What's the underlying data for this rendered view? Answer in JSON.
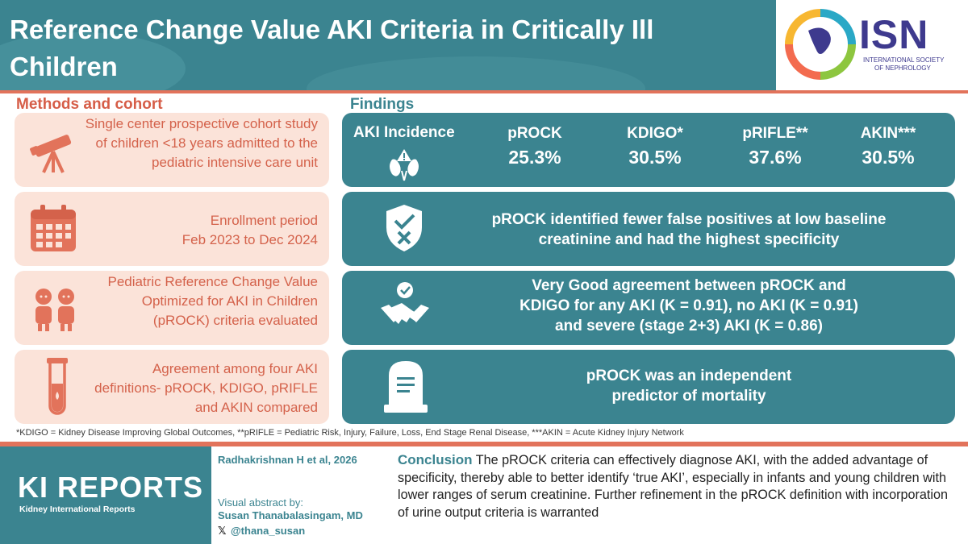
{
  "header": {
    "title": "Reference Change Value AKI Criteria in Critically Ill Children",
    "logo": {
      "name": "ISN",
      "subtitle_line1": "INTERNATIONAL SOCIETY",
      "subtitle_line2": "OF NEPHROLOGY"
    }
  },
  "methods": {
    "heading": "Methods and cohort",
    "items": [
      {
        "icon": "telescope-icon",
        "text": "Single center prospective cohort study of children <18 years admitted to the pediatric intensive care unit"
      },
      {
        "icon": "calendar-icon",
        "text_line1": "Enrollment period",
        "text_line2": "Feb 2023 to Dec 2024"
      },
      {
        "icon": "children-icon",
        "text": "Pediatric Reference Change Value Optimized for AKI in Children (pROCK) criteria evaluated"
      },
      {
        "icon": "test-tube-icon",
        "text": "Agreement among four AKI definitions- pROCK, KDIGO, pRIFLE and AKIN compared"
      }
    ]
  },
  "findings": {
    "heading": "Findings",
    "incidence": {
      "label": "AKI Incidence",
      "criteria": [
        {
          "name": "pROCK",
          "value": "25.3%"
        },
        {
          "name": "KDIGO*",
          "value": "30.5%"
        },
        {
          "name": "pRIFLE**",
          "value": "37.6%"
        },
        {
          "name": "AKIN***",
          "value": "30.5%"
        }
      ]
    },
    "items": [
      {
        "icon": "shield-check-icon",
        "line1": "pROCK identified fewer false positives at low baseline",
        "line2": "creatinine and had the highest specificity"
      },
      {
        "icon": "handshake-icon",
        "line1": "Very Good agreement between pROCK and",
        "line2": "KDIGO for any AKI (K = 0.91), no AKI (K = 0.91)",
        "line3": "and severe (stage 2+3) AKI (K = 0.86)"
      },
      {
        "icon": "tombstone-icon",
        "line1": "pROCK was an independent",
        "line2": "predictor of mortality"
      }
    ]
  },
  "footnote": "*KDIGO = Kidney Disease Improving Global Outcomes, **pRIFLE = Pediatric Risk, Injury, Failure, Loss, End Stage Renal Disease, ***AKIN = Acute Kidney Injury Network",
  "footer": {
    "journal": "KI REPORTS",
    "journal_sub": "Kidney International Reports",
    "citation": "Radhakrishnan H et al, 2026",
    "visual_abstract_by": "Visual abstract by:",
    "author": "Susan Thanabalasingam, MD",
    "handle": "@thana_susan",
    "conclusion_label": "Conclusion",
    "conclusion_text": "The pROCK criteria can effectively diagnose AKI, with the added advantage of specificity, thereby able to better identify ‘true AKI’, especially in infants and young children with lower ranges of serum creatinine. Further refinement in the pROCK definition with incorporation of urine output criteria is warranted"
  },
  "colors": {
    "teal": "#3b8490",
    "coral": "#e2735b",
    "peach": "#fbe3d9",
    "coral_text": "#d4624b"
  }
}
